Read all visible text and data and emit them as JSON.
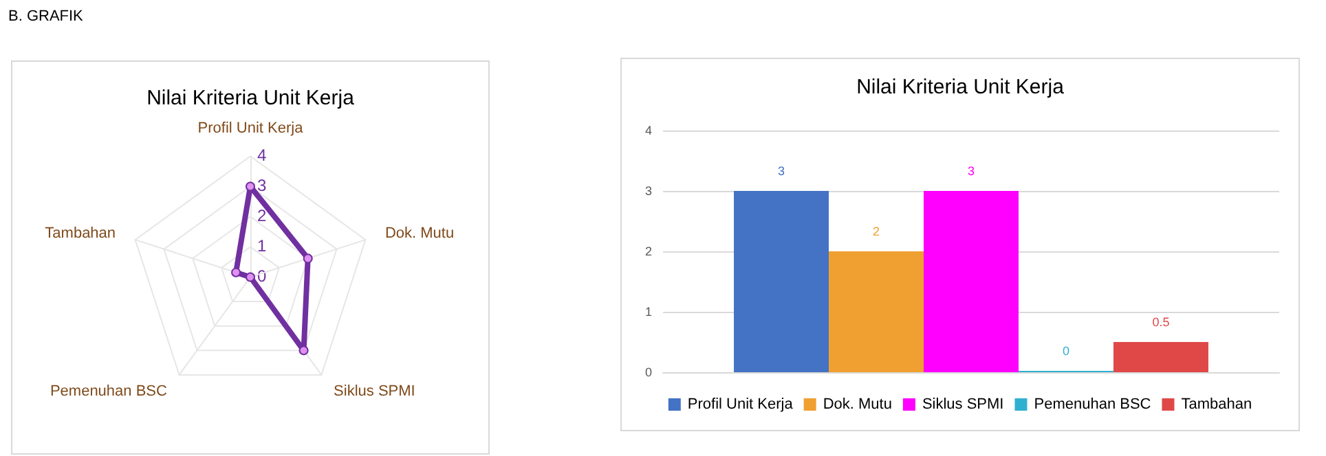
{
  "chart_data": [
    {
      "type": "radar",
      "title": "Nilai Kriteria Unit Kerja",
      "annotations": [
        "B. GRAFIK"
      ],
      "categories": [
        "Profil Unit Kerja",
        "Dok. Mutu",
        "Siklus SPMI",
        "Pemenuhan BSC",
        "Tambahan"
      ],
      "series": [
        {
          "color": "#7030a0",
          "values": [
            3,
            2,
            3,
            0,
            0.5
          ]
        }
      ],
      "ylim": [
        0,
        4
      ],
      "yticks": [
        0,
        1,
        2,
        3,
        4
      ],
      "marker": "circle",
      "grid": true
    },
    {
      "type": "bar",
      "title": "Nilai Kriteria Unit Kerja",
      "categories": [
        null
      ],
      "series": [
        {
          "name": "Profil Unit Kerja",
          "color": "#4472c4",
          "values": [
            3
          ]
        },
        {
          "name": "Dok. Mutu",
          "color": "#f0a030",
          "values": [
            2
          ]
        },
        {
          "name": "Siklus SPMI",
          "color": "#ff00ff",
          "values": [
            3
          ]
        },
        {
          "name": "Pemenuhan BSC",
          "color": "#30b0d0",
          "values": [
            0
          ]
        },
        {
          "name": "Tambahan",
          "color": "#e04848",
          "values": [
            0.5
          ]
        }
      ],
      "ylim": [
        0,
        4
      ],
      "yticks": [
        0,
        1,
        2,
        3,
        4
      ],
      "grid": "y",
      "legend": "bottom",
      "data_labels": true
    }
  ]
}
